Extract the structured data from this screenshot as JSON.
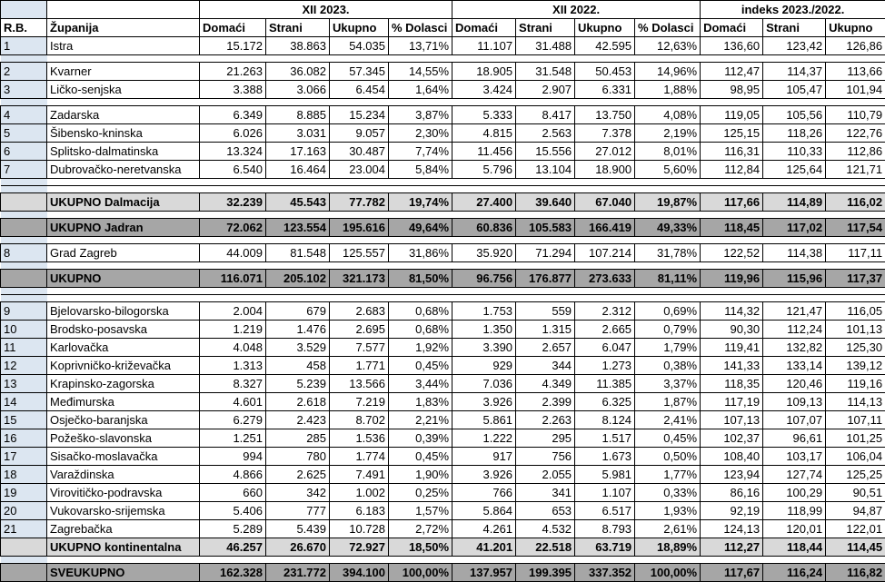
{
  "header": {
    "rb": "R.B.",
    "zupanija": "Županija",
    "group1": "XII  2023.",
    "group2": "XII  2022.",
    "group3": "indeks 2023./2022.",
    "cols1": [
      "Domaći",
      "Strani",
      "Ukupno",
      "% Dolasci"
    ],
    "cols2": [
      "Domaći",
      "Strani",
      "Ukupno",
      "% Dolasci"
    ],
    "cols3": [
      "Domaći",
      "Strani",
      "Ukupno"
    ]
  },
  "rows": [
    {
      "rb": "1",
      "name": "Istra",
      "v": [
        "15.172",
        "38.863",
        "54.035",
        "13,71%",
        "11.107",
        "31.488",
        "42.595",
        "12,63%",
        "136,60",
        "123,42",
        "126,86"
      ]
    },
    {
      "rb": "2",
      "name": "Kvarner",
      "v": [
        "21.263",
        "36.082",
        "57.345",
        "14,55%",
        "18.905",
        "31.548",
        "50.453",
        "14,96%",
        "112,47",
        "114,37",
        "113,66"
      ]
    },
    {
      "rb": "3",
      "name": "Ličko-senjska",
      "v": [
        "3.388",
        "3.066",
        "6.454",
        "1,64%",
        "3.424",
        "2.907",
        "6.331",
        "1,88%",
        "98,95",
        "105,47",
        "101,94"
      ]
    },
    {
      "rb": "4",
      "name": "Zadarska",
      "v": [
        "6.349",
        "8.885",
        "15.234",
        "3,87%",
        "5.333",
        "8.417",
        "13.750",
        "4,08%",
        "119,05",
        "105,56",
        "110,79"
      ]
    },
    {
      "rb": "5",
      "name": "Šibensko-kninska",
      "v": [
        "6.026",
        "3.031",
        "9.057",
        "2,30%",
        "4.815",
        "2.563",
        "7.378",
        "2,19%",
        "125,15",
        "118,26",
        "122,76"
      ]
    },
    {
      "rb": "6",
      "name": "Splitsko-dalmatinska",
      "v": [
        "13.324",
        "17.163",
        "30.487",
        "7,74%",
        "11.456",
        "15.556",
        "27.012",
        "8,01%",
        "116,31",
        "110,33",
        "112,86"
      ]
    },
    {
      "rb": "7",
      "name": "Dubrovačko-neretvanska",
      "v": [
        "6.540",
        "16.464",
        "23.004",
        "5,84%",
        "5.796",
        "13.104",
        "18.900",
        "5,60%",
        "112,84",
        "125,64",
        "121,71"
      ]
    },
    {
      "rb": "",
      "name": "UKUPNO Dalmacija",
      "v": [
        "32.239",
        "45.543",
        "77.782",
        "19,74%",
        "27.400",
        "39.640",
        "67.040",
        "19,87%",
        "117,66",
        "114,89",
        "116,02"
      ]
    },
    {
      "rb": "",
      "name": "UKUPNO Jadran",
      "v": [
        "72.062",
        "123.554",
        "195.616",
        "49,64%",
        "60.836",
        "105.583",
        "166.419",
        "49,33%",
        "118,45",
        "117,02",
        "117,54"
      ]
    },
    {
      "rb": "8",
      "name": "Grad Zagreb",
      "v": [
        "44.009",
        "81.548",
        "125.557",
        "31,86%",
        "35.920",
        "71.294",
        "107.214",
        "31,78%",
        "122,52",
        "114,38",
        "117,11"
      ]
    },
    {
      "rb": "",
      "name": "UKUPNO",
      "v": [
        "116.071",
        "205.102",
        "321.173",
        "81,50%",
        "96.756",
        "176.877",
        "273.633",
        "81,11%",
        "119,96",
        "115,96",
        "117,37"
      ]
    },
    {
      "rb": "9",
      "name": "Bjelovarsko-bilogorska",
      "v": [
        "2.004",
        "679",
        "2.683",
        "0,68%",
        "1.753",
        "559",
        "2.312",
        "0,69%",
        "114,32",
        "121,47",
        "116,05"
      ]
    },
    {
      "rb": "10",
      "name": "Brodsko-posavska",
      "v": [
        "1.219",
        "1.476",
        "2.695",
        "0,68%",
        "1.350",
        "1.315",
        "2.665",
        "0,79%",
        "90,30",
        "112,24",
        "101,13"
      ]
    },
    {
      "rb": "11",
      "name": "Karlovačka",
      "v": [
        "4.048",
        "3.529",
        "7.577",
        "1,92%",
        "3.390",
        "2.657",
        "6.047",
        "1,79%",
        "119,41",
        "132,82",
        "125,30"
      ]
    },
    {
      "rb": "12",
      "name": "Koprivničko-križevačka",
      "v": [
        "1.313",
        "458",
        "1.771",
        "0,45%",
        "929",
        "344",
        "1.273",
        "0,38%",
        "141,33",
        "133,14",
        "139,12"
      ]
    },
    {
      "rb": "13",
      "name": "Krapinsko-zagorska",
      "v": [
        "8.327",
        "5.239",
        "13.566",
        "3,44%",
        "7.036",
        "4.349",
        "11.385",
        "3,37%",
        "118,35",
        "120,46",
        "119,16"
      ]
    },
    {
      "rb": "14",
      "name": "Međimurska",
      "v": [
        "4.601",
        "2.618",
        "7.219",
        "1,83%",
        "3.926",
        "2.399",
        "6.325",
        "1,87%",
        "117,19",
        "109,13",
        "114,13"
      ]
    },
    {
      "rb": "15",
      "name": "Osječko-baranjska",
      "v": [
        "6.279",
        "2.423",
        "8.702",
        "2,21%",
        "5.861",
        "2.263",
        "8.124",
        "2,41%",
        "107,13",
        "107,07",
        "107,11"
      ]
    },
    {
      "rb": "16",
      "name": "Požeško-slavonska",
      "v": [
        "1.251",
        "285",
        "1.536",
        "0,39%",
        "1.222",
        "295",
        "1.517",
        "0,45%",
        "102,37",
        "96,61",
        "101,25"
      ]
    },
    {
      "rb": "17",
      "name": "Sisačko-moslavačka",
      "v": [
        "994",
        "780",
        "1.774",
        "0,45%",
        "917",
        "756",
        "1.673",
        "0,50%",
        "108,40",
        "103,17",
        "106,04"
      ]
    },
    {
      "rb": "18",
      "name": "Varaždinska",
      "v": [
        "4.866",
        "2.625",
        "7.491",
        "1,90%",
        "3.926",
        "2.055",
        "5.981",
        "1,77%",
        "123,94",
        "127,74",
        "125,25"
      ]
    },
    {
      "rb": "19",
      "name": "Virovitičko-podravska",
      "v": [
        "660",
        "342",
        "1.002",
        "0,25%",
        "766",
        "341",
        "1.107",
        "0,33%",
        "86,16",
        "100,29",
        "90,51"
      ]
    },
    {
      "rb": "20",
      "name": "Vukovarsko-srijemska",
      "v": [
        "5.406",
        "777",
        "6.183",
        "1,57%",
        "5.864",
        "653",
        "6.517",
        "1,93%",
        "92,19",
        "118,99",
        "94,87"
      ]
    },
    {
      "rb": "21",
      "name": "Zagrebačka",
      "v": [
        "5.289",
        "5.439",
        "10.728",
        "2,72%",
        "4.261",
        "4.532",
        "8.793",
        "2,61%",
        "124,13",
        "120,01",
        "122,01"
      ]
    },
    {
      "rb": "",
      "name": "UKUPNO kontinentalna",
      "v": [
        "46.257",
        "26.670",
        "72.927",
        "18,50%",
        "41.201",
        "22.518",
        "63.719",
        "18,89%",
        "112,27",
        "118,44",
        "114,45"
      ]
    },
    {
      "rb": "",
      "name": "SVEUKUPNO",
      "v": [
        "162.328",
        "231.772",
        "394.100",
        "100,00%",
        "137.957",
        "199.395",
        "337.352",
        "100,00%",
        "117,67",
        "116,24",
        "116,82"
      ]
    }
  ]
}
